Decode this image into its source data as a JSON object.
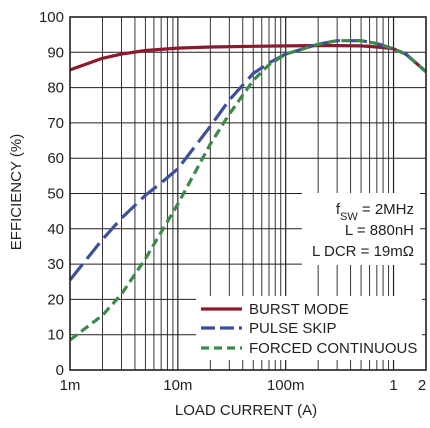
{
  "chart_data": {
    "type": "line",
    "title": "",
    "xlabel": "LOAD CURRENT (A)",
    "ylabel": "EFFICIENCY (%)",
    "x_scale": "log",
    "xlim": [
      0.001,
      2
    ],
    "ylim": [
      0,
      100
    ],
    "x_ticks": [
      {
        "value": 0.001,
        "label": "1m"
      },
      {
        "value": 0.01,
        "label": "10m"
      },
      {
        "value": 0.1,
        "label": "100m"
      },
      {
        "value": 1,
        "label": "1"
      },
      {
        "value": 2,
        "label": "2"
      }
    ],
    "y_ticks": [
      0,
      10,
      20,
      30,
      40,
      50,
      60,
      70,
      80,
      90,
      100
    ],
    "grid": true,
    "legend_position": "bottom-right",
    "annotation": {
      "lines": [
        {
          "main": "f",
          "sub": "SW",
          "rest": " = 2MHz"
        },
        {
          "main": "L = 880nH",
          "sub": "",
          "rest": ""
        },
        {
          "main": "L DCR = 19mΩ",
          "sub": "",
          "rest": ""
        }
      ]
    },
    "series": [
      {
        "name": "BURST MODE",
        "color": "#8b1a2e",
        "dash": "solid",
        "x": [
          0.001,
          0.002,
          0.003,
          0.005,
          0.01,
          0.02,
          0.05,
          0.1,
          0.2,
          0.3,
          0.5,
          0.7,
          1.0,
          1.3,
          2.0
        ],
        "y": [
          85,
          88.3,
          89.5,
          90.5,
          91.2,
          91.5,
          91.7,
          91.8,
          91.9,
          91.9,
          91.8,
          91.5,
          91.0,
          89.5,
          84.5
        ]
      },
      {
        "name": "PULSE SKIP",
        "color": "#3e4f9c",
        "dash": "long-dash",
        "x": [
          0.001,
          0.002,
          0.003,
          0.005,
          0.007,
          0.01,
          0.02,
          0.03,
          0.05,
          0.07,
          0.1,
          0.2,
          0.3,
          0.5,
          0.7,
          1.0,
          1.3,
          2.0
        ],
        "y": [
          25.5,
          37,
          43,
          49.5,
          53,
          57,
          69,
          76.5,
          84,
          87,
          89.5,
          92.3,
          93.3,
          93.3,
          92.5,
          91.0,
          89.5,
          84.5
        ]
      },
      {
        "name": "FORCED CONTINUOUS",
        "color": "#3b8a4a",
        "dash": "dash",
        "x": [
          0.001,
          0.002,
          0.003,
          0.005,
          0.007,
          0.01,
          0.02,
          0.03,
          0.05,
          0.07,
          0.1,
          0.2,
          0.3,
          0.5,
          0.7,
          1.0,
          1.3,
          2.0
        ],
        "y": [
          8.5,
          15.5,
          21.5,
          31.5,
          39,
          47,
          64,
          72.5,
          82,
          86.5,
          89.5,
          92.3,
          93.3,
          93.3,
          92.5,
          91.0,
          89.5,
          84.5
        ]
      }
    ]
  }
}
